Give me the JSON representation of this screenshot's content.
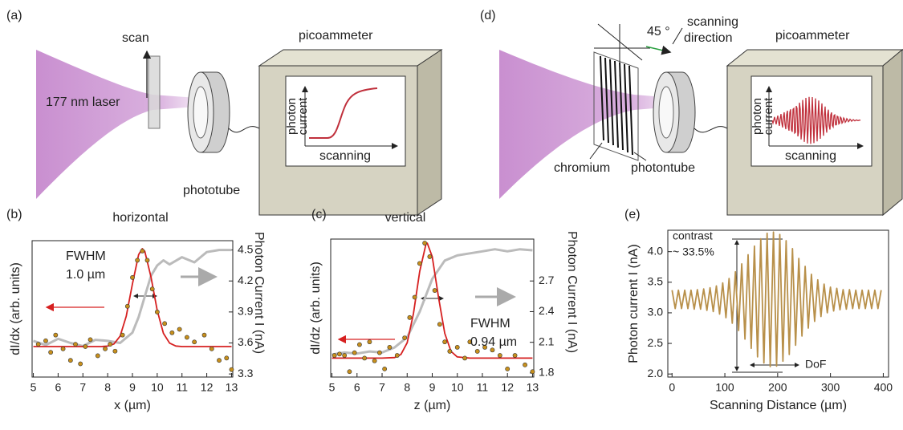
{
  "diagram": {
    "panels": [
      {
        "label": "(a)",
        "scan": "scan",
        "laser": "177 nm laser",
        "tube": "phototube",
        "meter": "picoammeter",
        "ylabel": [
          "photon",
          "current"
        ],
        "xlabel": "scanning"
      },
      {
        "label": "(d)",
        "angle": "45 °",
        "direction": [
          "scanning",
          "direction"
        ],
        "grating": "chromium",
        "tube": "photontube",
        "meter": "picoammeter",
        "ylabel": [
          "photon",
          "current"
        ],
        "xlabel": "scanning"
      }
    ]
  },
  "chart_data": [
    {
      "type": "line",
      "panel_label": "(b)",
      "title": "horizontal",
      "annotations": [
        "FWHM",
        "1.0 µm"
      ],
      "xlabel": "x (µm)",
      "ylabel": "dI/dx (arb. units)",
      "y2label": "Photon Current I (nA)",
      "xlim": [
        4.95,
        13.05
      ],
      "xticks": [
        5,
        6,
        7,
        8,
        9,
        10,
        11,
        12,
        13
      ],
      "ylim": [
        -0.165,
        1.02
      ],
      "y2lim": [
        3.27,
        4.59
      ],
      "y2ticks": [
        3.3,
        3.6,
        3.9,
        4.2,
        4.5
      ],
      "series": [
        {
          "style": "line",
          "color": "#bbbbbb",
          "axis": "y2",
          "x": [
            5,
            5.5,
            6,
            6.5,
            7,
            7.5,
            8,
            8.5,
            9,
            9.25,
            9.5,
            9.75,
            10,
            10.25,
            10.5,
            11,
            11.5,
            12,
            12.5,
            13
          ],
          "values": [
            3.62,
            3.58,
            3.64,
            3.6,
            3.57,
            3.63,
            3.62,
            3.6,
            3.7,
            3.85,
            4.05,
            4.25,
            4.35,
            4.4,
            4.36,
            4.43,
            4.38,
            4.48,
            4.5,
            4.5
          ]
        },
        {
          "style": "line",
          "color": "#d62020",
          "axis": "y",
          "x": [
            5,
            6,
            7,
            7.75,
            8,
            8.25,
            8.5,
            8.75,
            9,
            9.25,
            9.4,
            9.5,
            9.75,
            10,
            10.25,
            10.5,
            10.75,
            11,
            12,
            13
          ],
          "values": [
            0.1,
            0.1,
            0.1,
            0.1,
            0.104,
            0.122,
            0.19,
            0.364,
            0.645,
            0.899,
            0.95,
            0.927,
            0.705,
            0.413,
            0.215,
            0.13,
            0.105,
            0.1,
            0.1,
            0.1
          ]
        },
        {
          "style": "points",
          "color": "#c8901c",
          "axis": "y",
          "x": [
            5.2,
            5.5,
            5.7,
            5.9,
            6.2,
            6.5,
            6.7,
            6.9,
            7.1,
            7.3,
            7.6,
            7.9,
            8.1,
            8.3,
            8.6,
            8.8,
            9.0,
            9.2,
            9.4,
            9.6,
            9.8,
            10.0,
            10.3,
            10.6,
            10.9,
            11.2,
            11.5,
            11.9,
            12.2,
            12.5,
            12.8,
            13
          ],
          "values": [
            0.12,
            0.15,
            0.05,
            0.2,
            0.08,
            -0.02,
            0.12,
            -0.05,
            0.1,
            0.16,
            0.02,
            0.08,
            0.12,
            0.06,
            0.2,
            0.45,
            0.7,
            0.85,
            0.93,
            0.85,
            0.6,
            0.4,
            0.3,
            0.22,
            0.25,
            0.18,
            0.14,
            0.2,
            0.08,
            -0.02,
            0.0,
            -0.1
          ]
        }
      ]
    },
    {
      "type": "line",
      "panel_label": "(c)",
      "title": "vertical",
      "annotations": [
        "FWHM",
        "0.94 µm"
      ],
      "xlabel": "z (µm)",
      "ylabel": "dI/dz (arb. units)",
      "y2label": "Photon Current I (nA)",
      "xlim": [
        4.95,
        13.05
      ],
      "xticks": [
        5,
        6,
        7,
        8,
        9,
        10,
        11,
        12,
        13
      ],
      "ylim": [
        -0.04,
        0.98
      ],
      "y2lim": [
        1.76,
        3.11
      ],
      "y2ticks": [
        1.8,
        2.1,
        2.4,
        2.7
      ],
      "series": [
        {
          "style": "line",
          "color": "#bbbbbb",
          "axis": "y2",
          "x": [
            5,
            5.5,
            6,
            6.5,
            7,
            7.5,
            8,
            8.5,
            9,
            9.5,
            10,
            10.5,
            11,
            11.5,
            12,
            12.5,
            13
          ],
          "values": [
            1.98,
            2.0,
            1.99,
            2.01,
            2.0,
            2.05,
            2.15,
            2.4,
            2.72,
            2.9,
            2.95,
            2.97,
            2.99,
            3.01,
            2.99,
            3.01,
            3.0
          ]
        },
        {
          "style": "line",
          "color": "#d62020",
          "axis": "y",
          "x": [
            5,
            6,
            7,
            7.5,
            7.75,
            8,
            8.25,
            8.5,
            8.75,
            8.8,
            9,
            9.25,
            9.5,
            9.75,
            10,
            10.5,
            11,
            12,
            13
          ],
          "values": [
            0.1,
            0.1,
            0.1,
            0.104,
            0.127,
            0.214,
            0.429,
            0.741,
            0.943,
            0.95,
            0.85,
            0.55,
            0.283,
            0.15,
            0.109,
            0.1,
            0.1,
            0.1,
            0.1
          ]
        },
        {
          "style": "points",
          "color": "#c8901c",
          "axis": "y",
          "x": [
            5.1,
            5.3,
            5.5,
            5.7,
            5.9,
            6.1,
            6.3,
            6.5,
            6.7,
            6.9,
            7.1,
            7.3,
            7.6,
            7.9,
            8.1,
            8.3,
            8.5,
            8.7,
            8.9,
            9.1,
            9.3,
            9.5,
            9.7,
            10,
            10.3,
            10.5,
            10.8,
            11.1,
            11.4,
            11.7,
            12,
            12.3,
            12.7,
            13
          ],
          "values": [
            0.12,
            0.13,
            0.12,
            0.0,
            0.14,
            0.2,
            0.1,
            0.22,
            0.08,
            0.14,
            0.02,
            0.18,
            0.12,
            0.25,
            0.4,
            0.55,
            0.8,
            0.95,
            0.85,
            0.6,
            0.35,
            0.22,
            0.15,
            0.18,
            0.1,
            0.22,
            0.15,
            0.18,
            0.16,
            0.12,
            0.02,
            0.12,
            0.05,
            0.0
          ]
        }
      ]
    },
    {
      "type": "line",
      "panel_label": "(e)",
      "annotations": [
        "contrast",
        "~ 33.5%",
        "DoF"
      ],
      "xlabel": "Scanning Distance (µm)",
      "ylabel": "Photon current I (nA)",
      "xlim": [
        -8,
        410
      ],
      "xticks": [
        0,
        100,
        200,
        300,
        400
      ],
      "ylim": [
        1.95,
        4.35
      ],
      "yticks": [
        {
          "value": 2,
          "label": "2.0"
        },
        2.5,
        {
          "value": 3,
          "label": "3.0"
        },
        3.5,
        {
          "value": 4,
          "label": "4.0"
        }
      ],
      "series": [
        {
          "style": "line",
          "color": "#b8904a",
          "axis": "y",
          "x": [
            0,
            6,
            12,
            18,
            24,
            30,
            36,
            42,
            48,
            54,
            60,
            66,
            72,
            78,
            84,
            90,
            96,
            102,
            108,
            114,
            120,
            126,
            132,
            138,
            144,
            150,
            156,
            162,
            168,
            174,
            180,
            186,
            192,
            198,
            204,
            210,
            216,
            222,
            228,
            234,
            240,
            246,
            252,
            258,
            264,
            270,
            276,
            282,
            288,
            294,
            300,
            306,
            312,
            318,
            324,
            330,
            336,
            342,
            348,
            354,
            360,
            366,
            372,
            378,
            384,
            390,
            396
          ],
          "values": [
            3.37,
            3.07,
            3.37,
            3.07,
            3.37,
            3.07,
            3.37,
            3.06,
            3.38,
            3.06,
            3.39,
            3.04,
            3.41,
            3.02,
            3.44,
            2.98,
            3.49,
            2.92,
            3.56,
            2.83,
            3.67,
            2.71,
            3.8,
            2.57,
            3.95,
            2.42,
            4.09,
            2.28,
            4.21,
            2.18,
            4.3,
            2.12,
            4.32,
            2.13,
            4.28,
            2.21,
            4.18,
            2.32,
            4.05,
            2.47,
            3.89,
            2.62,
            3.76,
            2.75,
            3.63,
            2.86,
            3.54,
            2.94,
            3.47,
            3.0,
            3.42,
            3.03,
            3.4,
            3.05,
            3.38,
            3.06,
            3.38,
            3.07,
            3.37,
            3.07,
            3.37,
            3.07,
            3.37,
            3.07,
            3.37,
            3.07,
            3.37
          ]
        }
      ]
    }
  ]
}
